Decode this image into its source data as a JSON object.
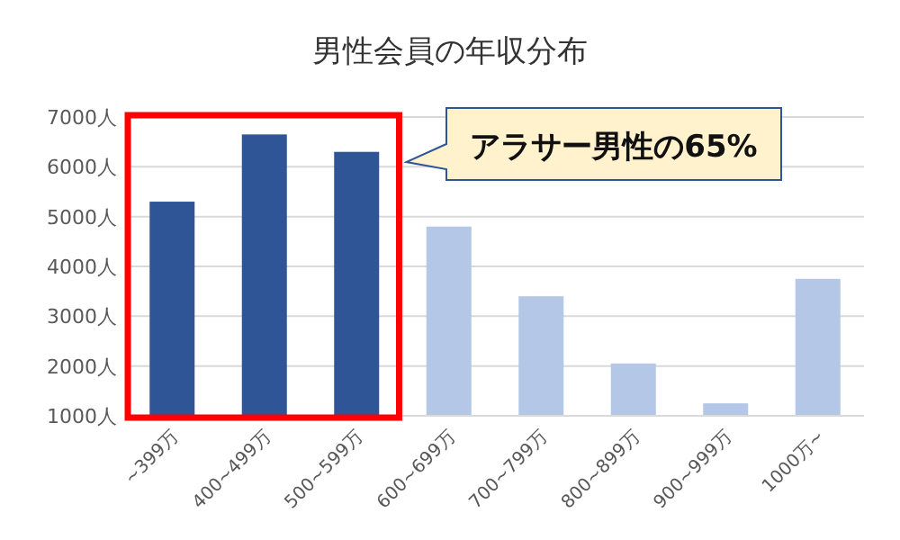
{
  "chart_data": {
    "type": "bar",
    "title": "男性会員の年収分布",
    "categories": [
      "~399万",
      "400~499万",
      "500~599万",
      "600~699万",
      "700~799万",
      "800~899万",
      "900~999万",
      "1000万~"
    ],
    "values": [
      5300,
      6650,
      6300,
      4800,
      3400,
      2050,
      1250,
      3750
    ],
    "colors": [
      "#2f5597",
      "#2f5597",
      "#2f5597",
      "#b4c7e7",
      "#b4c7e7",
      "#b4c7e7",
      "#b4c7e7",
      "#b4c7e7"
    ],
    "ylim": [
      1000,
      7000
    ],
    "yticks": [
      {
        "value": 1000,
        "label": "1000人"
      },
      {
        "value": 2000,
        "label": "2000人"
      },
      {
        "value": 3000,
        "label": "3000人"
      },
      {
        "value": 4000,
        "label": "4000人"
      },
      {
        "value": 5000,
        "label": "5000人"
      },
      {
        "value": 6000,
        "label": "6000人"
      },
      {
        "value": 7000,
        "label": "7000人"
      }
    ],
    "grid": "y",
    "annotations": [
      "アラサー男性の65%"
    ]
  }
}
